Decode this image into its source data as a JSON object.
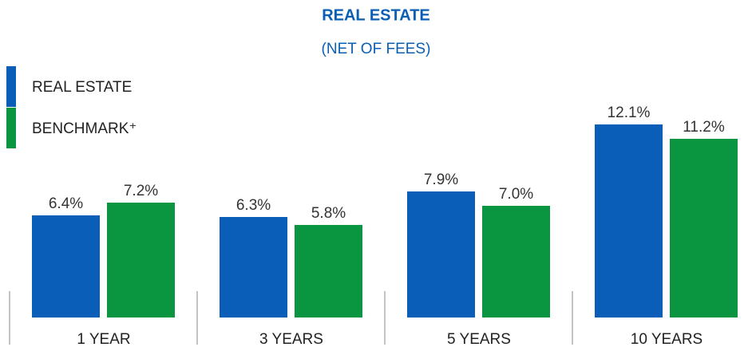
{
  "chart_data": {
    "type": "bar",
    "title": "REAL ESTATE",
    "subtitle": "(NET OF FEES)",
    "categories": [
      "1 YEAR",
      "3 YEARS",
      "5 YEARS",
      "10 YEARS"
    ],
    "series": [
      {
        "name": "REAL ESTATE",
        "color": "#0a5eb8",
        "values": [
          6.4,
          6.3,
          7.9,
          12.1
        ],
        "value_labels": [
          "6.4%",
          "6.3%",
          "7.9%",
          "12.1%"
        ]
      },
      {
        "name": "BENCHMARK⁺",
        "color": "#0a9640",
        "values": [
          7.2,
          5.8,
          7.0,
          11.2
        ],
        "value_labels": [
          "7.2%",
          "5.8%",
          "7.0%",
          "11.2%"
        ]
      }
    ],
    "legend": "top-left"
  }
}
